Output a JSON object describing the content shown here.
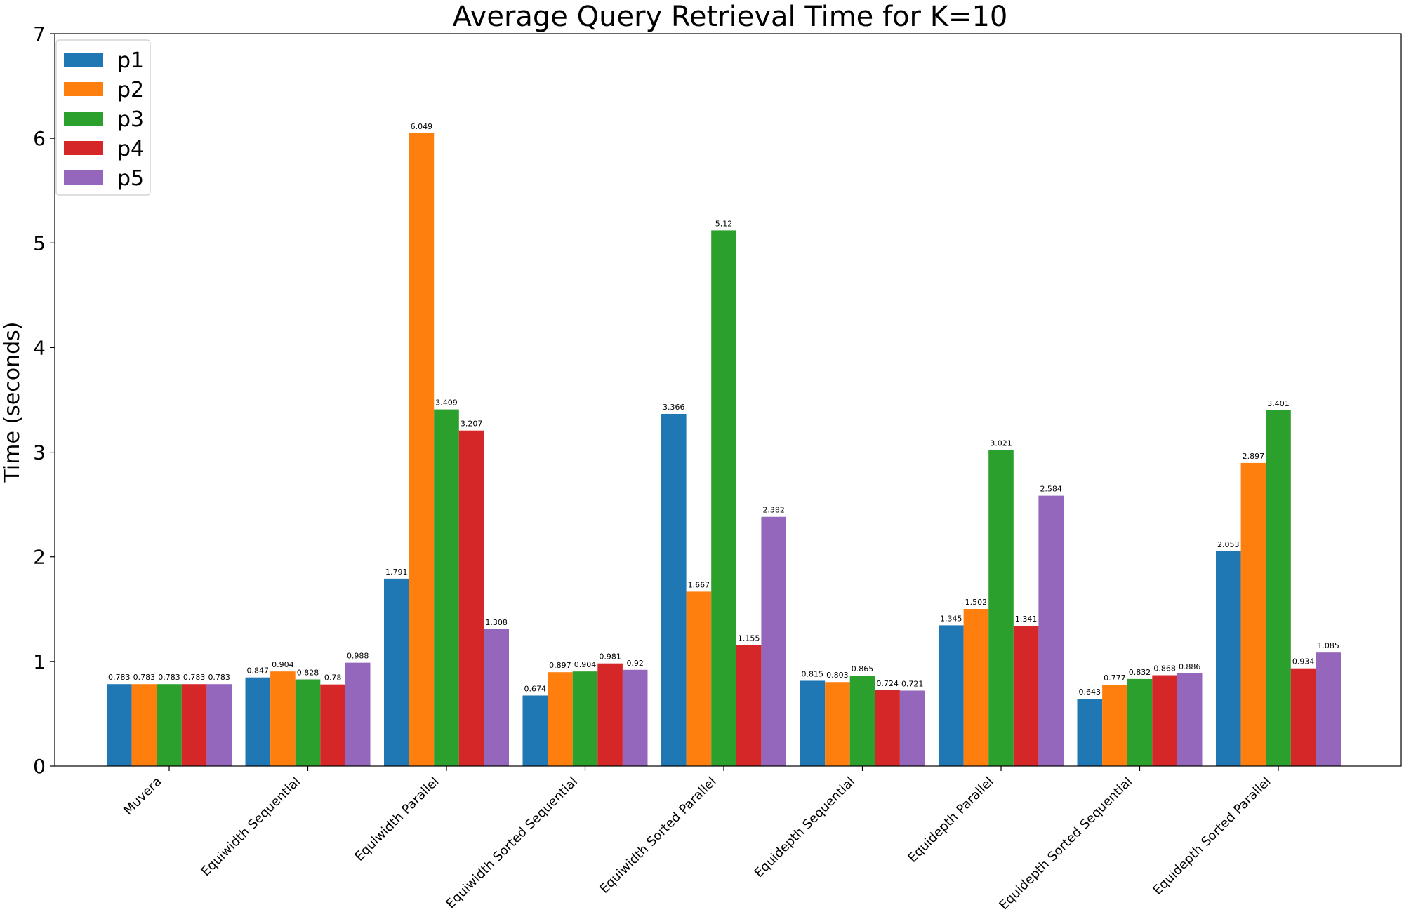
{
  "chart_data": {
    "type": "bar",
    "title": "Average Query Retrieval Time for K=10",
    "xlabel": "",
    "ylabel": "Time (seconds)",
    "ylim": [
      0,
      7
    ],
    "yticks": [
      0,
      1,
      2,
      3,
      4,
      5,
      6,
      7
    ],
    "grid": false,
    "legend_position": "top-left",
    "categories": [
      "Muvera",
      "Equiwidth Sequential",
      "Equiwidth Parallel",
      "Equiwidth Sorted Sequential",
      "Equiwidth Sorted Parallel",
      "Equidepth Sequential",
      "Equidepth Parallel",
      "Equidepth Sorted Sequential",
      "Equidepth Sorted Parallel"
    ],
    "series": [
      {
        "name": "p1",
        "color": "#1f77b4",
        "values": [
          0.783,
          0.847,
          1.791,
          0.674,
          3.366,
          0.815,
          1.345,
          0.643,
          2.053
        ]
      },
      {
        "name": "p2",
        "color": "#ff7f0e",
        "values": [
          0.783,
          0.904,
          6.049,
          0.897,
          1.667,
          0.803,
          1.502,
          0.777,
          2.897
        ]
      },
      {
        "name": "p3",
        "color": "#2ca02c",
        "values": [
          0.783,
          0.828,
          3.409,
          0.904,
          5.12,
          0.865,
          3.021,
          0.832,
          3.401
        ]
      },
      {
        "name": "p4",
        "color": "#d62728",
        "values": [
          0.783,
          0.78,
          3.207,
          0.981,
          1.155,
          0.724,
          1.341,
          0.868,
          0.934
        ]
      },
      {
        "name": "p5",
        "color": "#9467bd",
        "values": [
          0.783,
          0.988,
          1.308,
          0.92,
          2.382,
          0.721,
          2.584,
          0.886,
          1.085
        ]
      }
    ]
  }
}
